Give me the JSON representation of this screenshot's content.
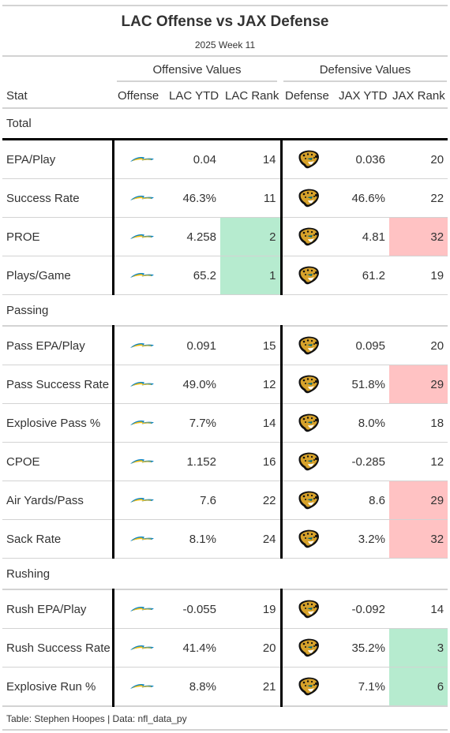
{
  "title": "LAC Offense vs JAX Defense",
  "subtitle": "2025 Week 11",
  "spanners": {
    "offense": "Offensive Values",
    "defense": "Defensive Values"
  },
  "columns": {
    "stat": "Stat",
    "offense": "Offense",
    "lac_ytd": "LAC YTD",
    "lac_rank": "LAC Rank",
    "defense": "Defense",
    "jax_ytd": "JAX YTD",
    "jax_rank": "JAX Rank"
  },
  "logos": {
    "offense": "chargers-bolt-logo",
    "defense": "jaguars-head-logo"
  },
  "colors": {
    "good_rank": "#b6ebcf",
    "bad_rank": "#ffc2c3",
    "bolt_blue": "#0080c6",
    "bolt_gold": "#ffc20e",
    "jag_gold": "#d7a22a",
    "jag_teal": "#006778"
  },
  "groups": [
    {
      "name": "Total",
      "rows": [
        {
          "stat": "EPA/Play",
          "lac_ytd": "0.04",
          "lac_rank": "14",
          "jax_ytd": "0.036",
          "jax_rank": "20",
          "lac_hl": "",
          "jax_hl": ""
        },
        {
          "stat": "Success Rate",
          "lac_ytd": "46.3%",
          "lac_rank": "11",
          "jax_ytd": "46.6%",
          "jax_rank": "22",
          "lac_hl": "",
          "jax_hl": ""
        },
        {
          "stat": "PROE",
          "lac_ytd": "4.258",
          "lac_rank": "2",
          "jax_ytd": "4.81",
          "jax_rank": "32",
          "lac_hl": "green",
          "jax_hl": "red"
        },
        {
          "stat": "Plays/Game",
          "lac_ytd": "65.2",
          "lac_rank": "1",
          "jax_ytd": "61.2",
          "jax_rank": "19",
          "lac_hl": "green",
          "jax_hl": ""
        }
      ]
    },
    {
      "name": "Passing",
      "rows": [
        {
          "stat": "Pass EPA/Play",
          "lac_ytd": "0.091",
          "lac_rank": "15",
          "jax_ytd": "0.095",
          "jax_rank": "20",
          "lac_hl": "",
          "jax_hl": ""
        },
        {
          "stat": "Pass Success Rate",
          "lac_ytd": "49.0%",
          "lac_rank": "12",
          "jax_ytd": "51.8%",
          "jax_rank": "29",
          "lac_hl": "",
          "jax_hl": "red"
        },
        {
          "stat": "Explosive Pass %",
          "lac_ytd": "7.7%",
          "lac_rank": "14",
          "jax_ytd": "8.0%",
          "jax_rank": "18",
          "lac_hl": "",
          "jax_hl": ""
        },
        {
          "stat": "CPOE",
          "lac_ytd": "1.152",
          "lac_rank": "16",
          "jax_ytd": "-0.285",
          "jax_rank": "12",
          "lac_hl": "",
          "jax_hl": ""
        },
        {
          "stat": "Air Yards/Pass",
          "lac_ytd": "7.6",
          "lac_rank": "22",
          "jax_ytd": "8.6",
          "jax_rank": "29",
          "lac_hl": "",
          "jax_hl": "red"
        },
        {
          "stat": "Sack Rate",
          "lac_ytd": "8.1%",
          "lac_rank": "24",
          "jax_ytd": "3.2%",
          "jax_rank": "32",
          "lac_hl": "",
          "jax_hl": "red"
        }
      ]
    },
    {
      "name": "Rushing",
      "rows": [
        {
          "stat": "Rush EPA/Play",
          "lac_ytd": "-0.055",
          "lac_rank": "19",
          "jax_ytd": "-0.092",
          "jax_rank": "14",
          "lac_hl": "",
          "jax_hl": ""
        },
        {
          "stat": "Rush Success Rate",
          "lac_ytd": "41.4%",
          "lac_rank": "20",
          "jax_ytd": "35.2%",
          "jax_rank": "3",
          "lac_hl": "",
          "jax_hl": "green"
        },
        {
          "stat": "Explosive Run %",
          "lac_ytd": "8.8%",
          "lac_rank": "21",
          "jax_ytd": "7.1%",
          "jax_rank": "6",
          "lac_hl": "",
          "jax_hl": "green"
        }
      ]
    }
  ],
  "footer": "Table: Stephen Hoopes | Data: nfl_data_py"
}
